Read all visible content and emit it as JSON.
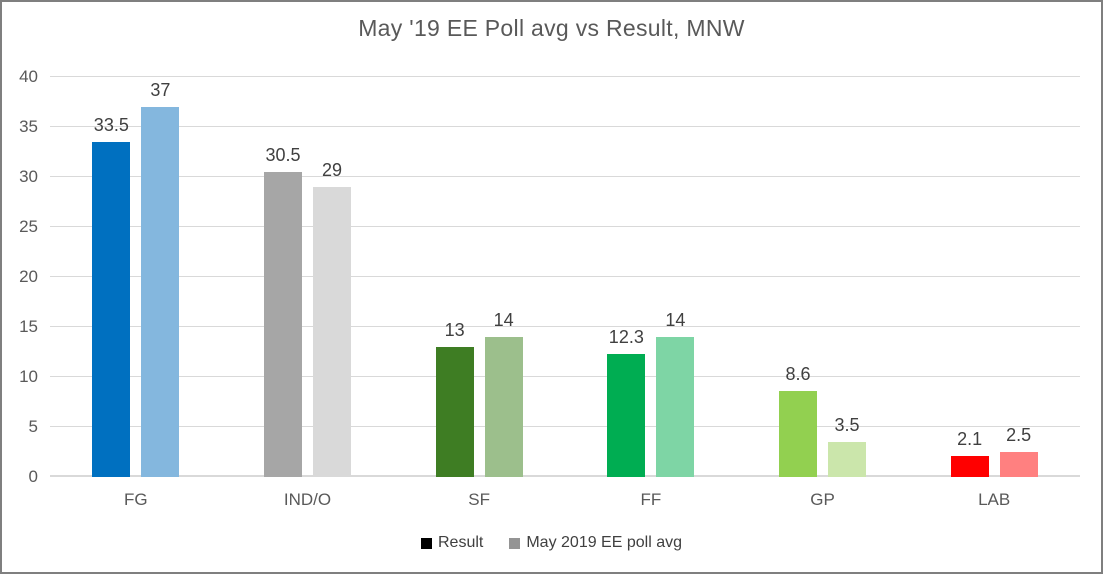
{
  "frame": {
    "border_color": "#7F7F7F",
    "background": "#FFFFFF"
  },
  "chart_data": {
    "type": "bar",
    "title": "May '19 EE Poll avg vs Result, MNW",
    "categories": [
      "FG",
      "IND/O",
      "SF",
      "FF",
      "GP",
      "LAB"
    ],
    "series": [
      {
        "name": "Result",
        "values": [
          33.5,
          30.5,
          13,
          12.3,
          8.6,
          2.1
        ],
        "bar_colors": [
          "#0070C0",
          "#A6A6A6",
          "#3E7D23",
          "#00AD52",
          "#92D050",
          "#FF0000"
        ],
        "legend_swatch_color": "#000000"
      },
      {
        "name": "May 2019 EE poll avg",
        "values": [
          37,
          29,
          14,
          14,
          3.5,
          2.5
        ],
        "bar_colors": [
          "#84B7DE",
          "#D9D9D9",
          "#9CBF8C",
          "#7ED5A5",
          "#CBE6AB",
          "#FF8080"
        ],
        "legend_swatch_color": "#949494"
      }
    ],
    "yticks": [
      0,
      5,
      10,
      15,
      20,
      25,
      30,
      35,
      40
    ],
    "ylim": [
      0,
      40
    ],
    "grid": true,
    "legend_position": "bottom",
    "colors": {
      "gridline": "#D9D9D9",
      "title_text": "#595959",
      "axis_text": "#595959",
      "data_label_text": "#404040",
      "legend_text": "#404040"
    }
  }
}
